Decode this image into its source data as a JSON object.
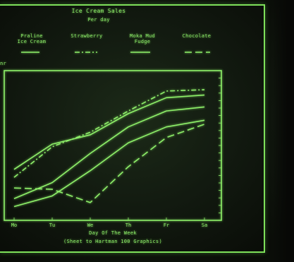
{
  "chart_data": {
    "type": "line",
    "title": "Ice Cream Sales",
    "subtitle": "Per day",
    "xlabel": "Day Of The Week",
    "caption": "(Sheet to Hartman 100 Graphics)",
    "ylabel_fragment": "nr",
    "categories": [
      "Mo",
      "Tu",
      "We",
      "Th",
      "Fr",
      "Sa"
    ],
    "ylim": [
      0,
      10
    ],
    "series": [
      {
        "name": "Praline\nIce Cream",
        "style": "solid",
        "values": [
          3.2,
          5.1,
          5.8,
          7.4,
          8.6,
          8.8
        ]
      },
      {
        "name": "Strawberry",
        "style": "dashdot",
        "values": [
          2.6,
          4.9,
          6.0,
          7.6,
          9.1,
          9.2
        ]
      },
      {
        "name": "Moka Mud\nFudge",
        "style": "solid",
        "values": [
          1.0,
          2.2,
          4.4,
          6.4,
          7.6,
          7.9
        ]
      },
      {
        "name": "Chocolate",
        "style": "longdash",
        "values": [
          1.8,
          1.7,
          0.7,
          3.4,
          5.6,
          6.6
        ]
      },
      {
        "name": "",
        "style": "solid",
        "values": [
          0.4,
          1.2,
          3.1,
          5.2,
          6.4,
          6.9
        ]
      }
    ]
  },
  "colors": {
    "phosphor": "#8ef06a",
    "phosphor_dim": "#6bcf4d"
  }
}
